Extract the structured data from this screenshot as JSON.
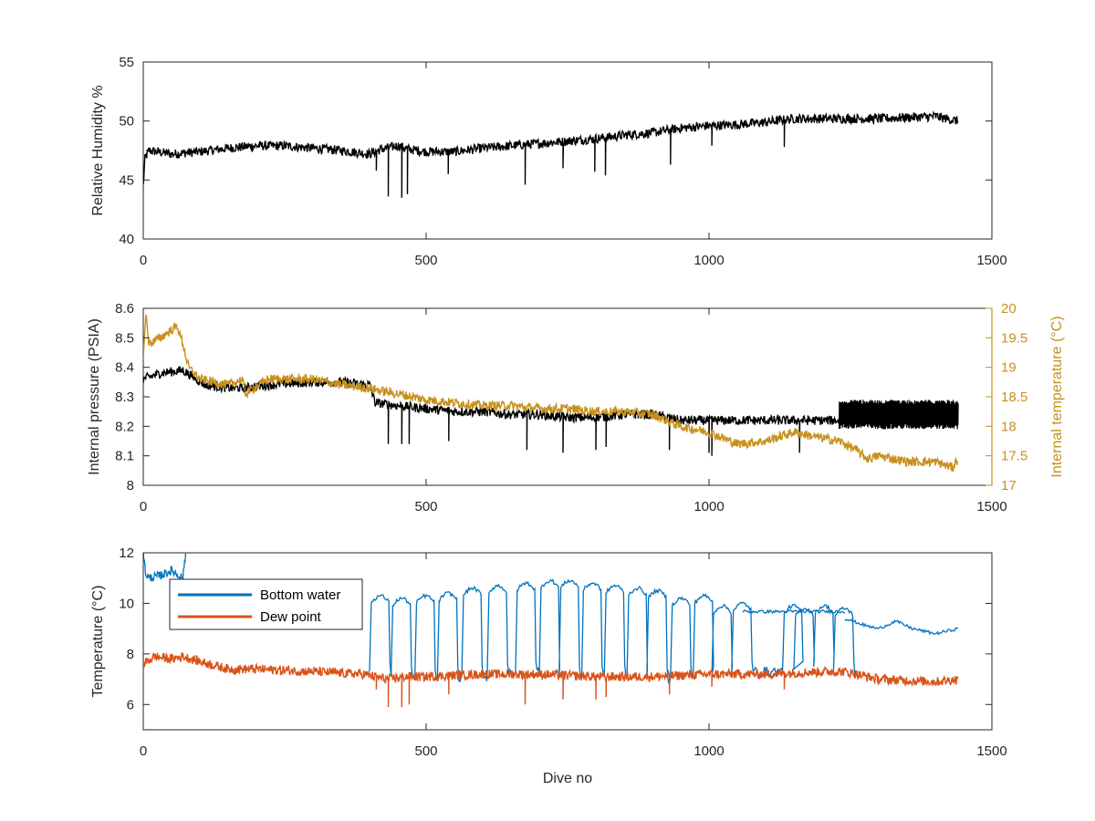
{
  "chart_data": [
    {
      "type": "line",
      "xlabel": "",
      "ylabel": "Relative Humidity %",
      "xlim": [
        0,
        1500
      ],
      "ylim": [
        40,
        55
      ],
      "xticks": [
        "0",
        "500",
        "1000",
        "1500"
      ],
      "yticks": [
        "40",
        "45",
        "50",
        "55"
      ],
      "grid": false,
      "series": [
        {
          "color": "#000000",
          "axis": "left",
          "x": [
            0,
            3,
            10,
            50,
            100,
            150,
            200,
            250,
            300,
            350,
            400,
            420,
            450,
            470,
            500,
            550,
            600,
            650,
            700,
            750,
            800,
            850,
            900,
            950,
            1000,
            1050,
            1100,
            1150,
            1200,
            1250,
            1300,
            1350,
            1400,
            1440
          ],
          "y": [
            44.5,
            46.8,
            47.5,
            47.2,
            47.4,
            47.7,
            47.9,
            47.9,
            47.7,
            47.5,
            47.2,
            47.6,
            47.9,
            47.6,
            47.4,
            47.4,
            47.7,
            47.9,
            48.1,
            48.3,
            48.5,
            48.8,
            49.0,
            49.4,
            49.6,
            49.7,
            49.9,
            50.2,
            50.2,
            50.2,
            50.2,
            50.3,
            50.4,
            50.0
          ],
          "dips": [
            [
              412,
              45.8
            ],
            [
              433,
              43.6
            ],
            [
              457,
              43.5
            ],
            [
              467,
              43.8
            ],
            [
              539,
              45.5
            ],
            [
              675,
              44.6
            ],
            [
              742,
              46.0
            ],
            [
              798,
              45.7
            ],
            [
              817,
              45.4
            ],
            [
              932,
              46.3
            ],
            [
              1005,
              47.9
            ],
            [
              1133,
              47.8
            ]
          ]
        }
      ]
    },
    {
      "type": "line",
      "xlabel": "",
      "ylabel": "Internal pressure (PSIA)",
      "ylabel_right": "Internal temperature (°C)",
      "xlim": [
        0,
        1500
      ],
      "ylim": [
        8,
        8.6
      ],
      "ylim_right": [
        17,
        20
      ],
      "xticks": [
        "0",
        "500",
        "1000",
        "1500"
      ],
      "yticks": [
        "8",
        "8.1",
        "8.2",
        "8.3",
        "8.4",
        "8.5",
        "8.6"
      ],
      "yticks_right": [
        "17",
        "17.5",
        "18",
        "18.5",
        "19",
        "19.5",
        "20"
      ],
      "grid": false,
      "series": [
        {
          "color": "#000000",
          "axis": "left",
          "x": [
            0,
            30,
            70,
            110,
            150,
            180,
            220,
            300,
            350,
            400,
            410,
            450,
            500,
            550,
            600,
            650,
            700,
            750,
            800,
            850,
            900,
            950,
            1000,
            1050,
            1100,
            1150,
            1200,
            1230,
            1240,
            1300,
            1350,
            1400,
            1440
          ],
          "y": [
            8.36,
            8.38,
            8.39,
            8.34,
            8.33,
            8.33,
            8.34,
            8.35,
            8.35,
            8.34,
            8.28,
            8.27,
            8.26,
            8.25,
            8.25,
            8.24,
            8.24,
            8.23,
            8.23,
            8.24,
            8.24,
            8.22,
            8.22,
            8.22,
            8.22,
            8.22,
            8.22,
            8.22,
            8.24,
            8.24,
            8.24,
            8.23,
            8.23
          ],
          "dips": [
            [
              433,
              8.14
            ],
            [
              457,
              8.14
            ],
            [
              470,
              8.14
            ],
            [
              540,
              8.15
            ],
            [
              678,
              8.12
            ],
            [
              742,
              8.11
            ],
            [
              800,
              8.12
            ],
            [
              818,
              8.13
            ],
            [
              930,
              8.12
            ],
            [
              1000,
              8.11
            ],
            [
              1005,
              8.1
            ],
            [
              1160,
              8.11
            ]
          ],
          "noise_band": [
            1230,
            1440,
            8.19,
            8.29
          ]
        },
        {
          "color": "#c8901c",
          "axis": "right",
          "x": [
            0,
            5,
            10,
            30,
            60,
            70,
            80,
            100,
            150,
            175,
            180,
            220,
            300,
            350,
            400,
            420,
            450,
            500,
            550,
            600,
            650,
            700,
            750,
            800,
            850,
            900,
            950,
            1000,
            1050,
            1100,
            1150,
            1200,
            1230,
            1260,
            1280,
            1300,
            1350,
            1400,
            1430,
            1440
          ],
          "y": [
            19.2,
            19.9,
            19.4,
            19.5,
            19.7,
            19.4,
            19.0,
            18.8,
            18.7,
            18.8,
            18.55,
            18.8,
            18.8,
            18.7,
            18.65,
            18.6,
            18.55,
            18.45,
            18.4,
            18.35,
            18.35,
            18.3,
            18.3,
            18.25,
            18.25,
            18.2,
            18.0,
            17.9,
            17.7,
            17.75,
            17.9,
            17.8,
            17.75,
            17.6,
            17.45,
            17.5,
            17.4,
            17.4,
            17.3,
            17.45
          ]
        }
      ]
    },
    {
      "type": "line",
      "xlabel": "Dive no",
      "ylabel": "Temperature (°C)",
      "xlim": [
        0,
        1500
      ],
      "ylim": [
        5,
        12
      ],
      "xticks": [
        "0",
        "500",
        "1000",
        "1500"
      ],
      "yticks": [
        "6",
        "8",
        "10",
        "12"
      ],
      "grid": false,
      "legend": "top-left",
      "series": [
        {
          "name": "Bottom water",
          "color": "#0072bd",
          "axis": "left",
          "x": [
            0,
            4,
            10,
            30,
            50,
            70,
            75
          ],
          "y": [
            12,
            11.2,
            11.0,
            11.1,
            11.3,
            11.0,
            12
          ],
          "late_x": [
            1240,
            1280,
            1300,
            1330,
            1360,
            1400,
            1440
          ],
          "late_y": [
            9.4,
            9.1,
            9.0,
            9.3,
            9.0,
            8.8,
            9.0
          ],
          "oscillation": [
            [
              400,
              7.3,
              10.3
            ],
            [
              438,
              7.1,
              10.2
            ],
            [
              480,
              7.0,
              10.3
            ],
            [
              520,
              7.1,
              10.4
            ],
            [
              563,
              7.1,
              10.6
            ],
            [
              608,
              7.2,
              10.7
            ],
            [
              658,
              7.3,
              10.8
            ],
            [
              700,
              7.1,
              10.9
            ],
            [
              735,
              7.1,
              10.9
            ],
            [
              775,
              7.1,
              10.8
            ],
            [
              815,
              7.2,
              10.7
            ],
            [
              855,
              7.0,
              10.6
            ],
            [
              890,
              7.0,
              10.5
            ],
            [
              932,
              7.1,
              10.2
            ],
            [
              972,
              7.1,
              10.3
            ],
            [
              1005,
              7.1,
              9.9
            ],
            [
              1040,
              7.3,
              10.0
            ],
            [
              1130,
              7.3,
              9.9
            ],
            [
              1150,
              7.4,
              9.8
            ],
            [
              1185,
              7.5,
              9.9
            ],
            [
              1220,
              7.3,
              9.8
            ]
          ],
          "plateau": [
            1060,
            1240,
            9.6,
            9.75
          ]
        },
        {
          "name": "Dew point",
          "color": "#d95319",
          "axis": "left",
          "x": [
            0,
            20,
            50,
            70,
            100,
            150,
            200,
            300,
            390,
            430,
            460,
            500,
            600,
            700,
            800,
            900,
            1000,
            1100,
            1200,
            1240,
            1300,
            1400,
            1440
          ],
          "y": [
            7.6,
            7.9,
            7.8,
            7.9,
            7.7,
            7.4,
            7.4,
            7.3,
            7.2,
            7.0,
            7.1,
            7.1,
            7.2,
            7.2,
            7.1,
            7.1,
            7.2,
            7.2,
            7.3,
            7.3,
            7.0,
            6.9,
            7.0
          ],
          "dips": [
            [
              412,
              6.6
            ],
            [
              433,
              5.9
            ],
            [
              457,
              5.9
            ],
            [
              470,
              6.0
            ],
            [
              540,
              6.4
            ],
            [
              675,
              6.0
            ],
            [
              742,
              6.2
            ],
            [
              800,
              6.2
            ],
            [
              818,
              6.3
            ],
            [
              930,
              6.4
            ],
            [
              1005,
              6.7
            ],
            [
              1133,
              6.6
            ]
          ]
        }
      ]
    }
  ]
}
